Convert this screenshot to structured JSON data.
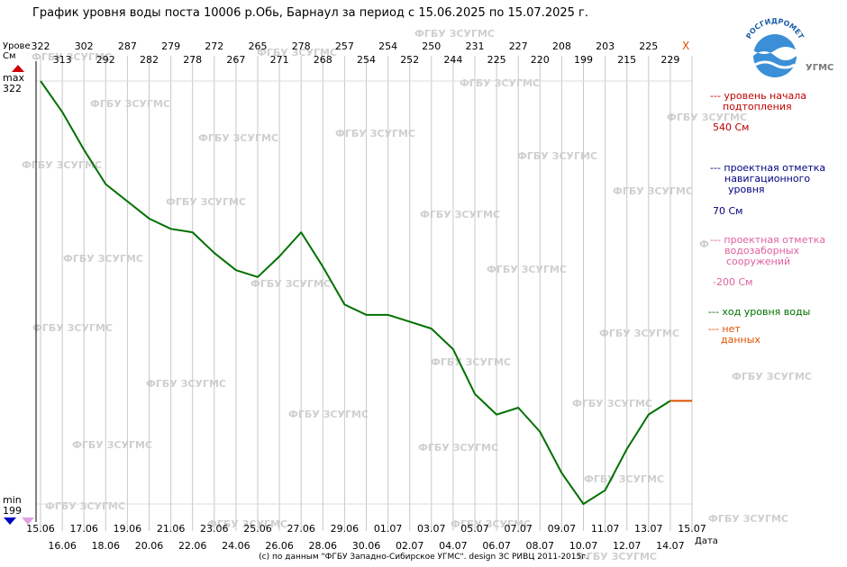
{
  "header": {
    "title": "График уровня воды поста 10006 р.Обь, Барнаул за период с 15.06.2025 по 15.07.2025 г.",
    "y_caption_1": "Урове",
    "y_caption_2": "См",
    "max_label": "max",
    "max_value": "322",
    "min_label": "min",
    "min_value": "199",
    "x_caption": "Дата",
    "missing_mark": "X"
  },
  "legend": {
    "flood_label_1": "--- уровень начала",
    "flood_label_2": "подтопления",
    "flood_value": "540 См",
    "nav_label_1": "--- проектная отметка",
    "nav_label_2": "навигационного",
    "nav_label_3": "уровня",
    "nav_value": "70 См",
    "intake_label_1": "--- проектная отметка",
    "intake_label_2": "водозаборных",
    "intake_label_3": "сооружений",
    "intake_value": "-200 См",
    "flow_label": "--- ход уровня воды",
    "nodata_label_1": "--- нет",
    "nodata_label_2": "данных"
  },
  "logo": {
    "arc_text": "РОСГИДРОМЕТ",
    "ugms_text": "УГМС"
  },
  "watermark": "ФГБУ ЗСУГМС",
  "credit": "(с) по данным \"ФГБУ Западно-Сибирское УГМС\". design ЗС РИВЦ 2011-2015г.",
  "colors": {
    "level_line": "#007000",
    "nodata_line": "#e05000",
    "flood": "#c00000",
    "navigation": "#000080",
    "intake": "#e060a0",
    "max_marker": "#d00000",
    "min_marker": "#0000c0",
    "watermark": "#cfcfcf"
  },
  "chart_data": {
    "type": "line",
    "title": "График уровня воды поста 10006 р.Обь, Барнаул за период с 15.06.2025 по 15.07.2025 г.",
    "xlabel": "Дата",
    "ylabel": "Урове См",
    "ylim": [
      199,
      322
    ],
    "grid": "vertical",
    "legend": "right",
    "x": [
      "15.06",
      "16.06",
      "17.06",
      "18.06",
      "19.06",
      "20.06",
      "21.06",
      "22.06",
      "23.06",
      "24.06",
      "25.06",
      "26.06",
      "27.06",
      "28.06",
      "29.06",
      "30.06",
      "01.07",
      "02.07",
      "03.07",
      "04.07",
      "05.07",
      "06.07",
      "07.07",
      "08.07",
      "09.07",
      "10.07",
      "11.07",
      "12.07",
      "13.07",
      "14.07",
      "15.07"
    ],
    "series": [
      {
        "name": "ход уровня воды",
        "values": [
          322,
          313,
          302,
          292,
          287,
          282,
          279,
          278,
          272,
          267,
          265,
          271,
          278,
          268,
          257,
          254,
          254,
          252,
          250,
          244,
          231,
          225,
          227,
          220,
          208,
          199,
          203,
          215,
          225,
          229,
          null
        ]
      },
      {
        "name": "нет данных",
        "values": [
          null,
          null,
          null,
          null,
          null,
          null,
          null,
          null,
          null,
          null,
          null,
          null,
          null,
          null,
          null,
          null,
          null,
          null,
          null,
          null,
          null,
          null,
          null,
          null,
          null,
          null,
          null,
          null,
          null,
          229,
          229
        ]
      }
    ]
  }
}
